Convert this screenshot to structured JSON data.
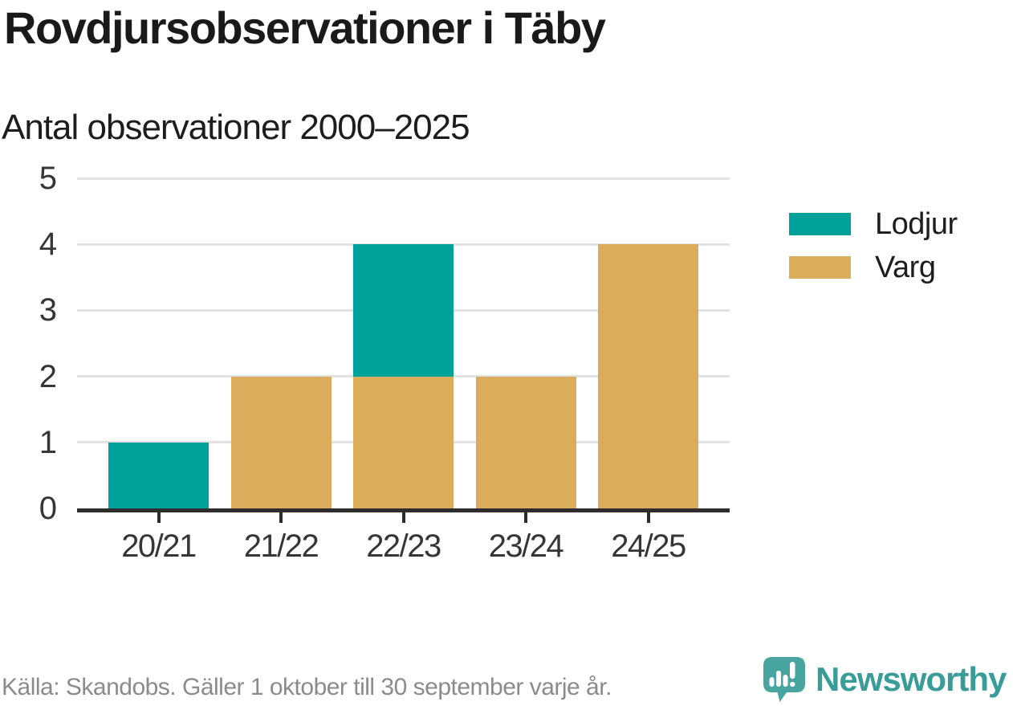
{
  "title": "Rovdjursobservationer i Täby",
  "subtitle": "Antal observationer 2000–2025",
  "footer": {
    "source": "Källa: Skandobs. Gäller 1 oktober till 30 september varje år."
  },
  "branding": {
    "name": "Newsworthy",
    "icon": "bar-chart-speech-bubble-icon",
    "text_color": "#399c96",
    "icon_color": "#48a49f"
  },
  "colors": {
    "gridline": "#e2e2e2",
    "axis": "#2d2d2d",
    "tick_label": "#363636",
    "footer_text": "#8b8b8b"
  },
  "chart_data": {
    "type": "bar",
    "stacked": true,
    "title": "Rovdjursobservationer i Täby",
    "subtitle": "Antal observationer 2000–2025",
    "categories": [
      "20/21",
      "21/22",
      "22/23",
      "23/24",
      "24/25"
    ],
    "series": [
      {
        "name": "Varg",
        "color": "#dbac5b",
        "values": [
          0,
          2,
          2,
          2,
          4
        ]
      },
      {
        "name": "Lodjur",
        "color": "#00a199",
        "values": [
          1,
          0,
          2,
          0,
          0
        ]
      }
    ],
    "stack_order_note": "series listed bottom-to-top",
    "legend": [
      {
        "label": "Lodjur",
        "color": "#00a199"
      },
      {
        "label": "Varg",
        "color": "#dbac5b"
      }
    ],
    "legend_position": "right",
    "xlabel": "",
    "ylabel": "",
    "ylim": [
      0,
      5
    ],
    "yticks": [
      0,
      1,
      2,
      3,
      4,
      5
    ],
    "grid": "horizontal"
  }
}
